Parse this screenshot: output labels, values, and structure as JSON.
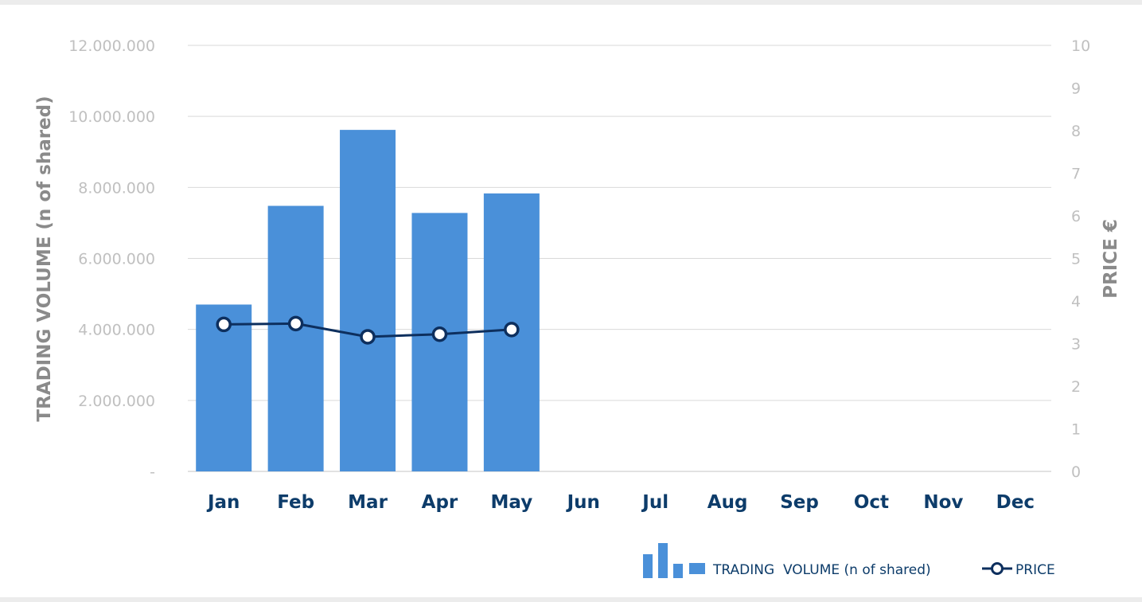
{
  "chart_data": {
    "type": "bar",
    "categories": [
      "Jan",
      "Feb",
      "Mar",
      "Apr",
      "May",
      "Jun",
      "Jul",
      "Aug",
      "Sep",
      "Oct",
      "Nov",
      "Dec"
    ],
    "series": [
      {
        "name": "TRADING  VOLUME (n of shared)",
        "type": "bar",
        "axis": "left",
        "color": "#4a90d9",
        "values": [
          4700000,
          7480000,
          9620000,
          7280000,
          7830000,
          null,
          null,
          null,
          null,
          null,
          null,
          null
        ]
      },
      {
        "name": "PRICE",
        "type": "line",
        "axis": "right",
        "color": "#0d2f5e",
        "values": [
          3.45,
          3.47,
          3.16,
          3.22,
          3.33,
          null,
          null,
          null,
          null,
          null,
          null,
          null
        ]
      }
    ],
    "ylabel_left": "TRADING  VOLUME (n of shared)",
    "ylabel_right": "PRICE €",
    "ylim_left": [
      0,
      12000000
    ],
    "ylim_right": [
      0,
      10
    ],
    "yticks_left": [
      "-",
      "2.000.000",
      "4.000.000",
      "6.000.000",
      "8.000.000",
      "10.000.000",
      "12.000.000"
    ],
    "yticks_right": [
      "0",
      "1",
      "2",
      "3",
      "4",
      "5",
      "6",
      "7",
      "8",
      "9",
      "10"
    ],
    "grid": true,
    "legend_position": "bottom-right",
    "legend_icon": "bar-chart-icon"
  }
}
